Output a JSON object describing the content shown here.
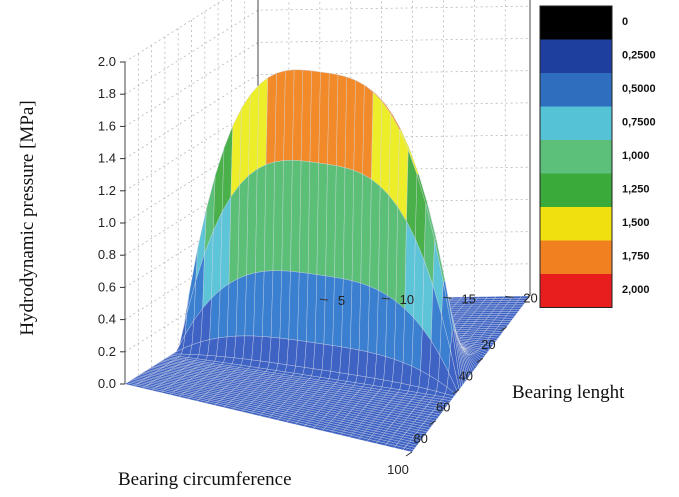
{
  "chart_data": {
    "type": "surface3d",
    "zlabel": "Hydrodynamic pressure [MPa]",
    "xlabel": "Bearing circumference",
    "ylabel": "Bearing lenght",
    "z_ticks": [
      "0.0",
      "0.2",
      "0.4",
      "0.6",
      "0.8",
      "1.0",
      "1.2",
      "1.4",
      "1.6",
      "1.8",
      "2.0"
    ],
    "zlim": [
      0,
      2.0
    ],
    "circumference_ticks": [
      "100",
      "80",
      "60",
      "40",
      "20"
    ],
    "length_ticks": [
      "5",
      "10",
      "15",
      "20"
    ],
    "circumference_range": [
      0,
      100
    ],
    "length_range": [
      0,
      22
    ],
    "peak_pressure": 1.9,
    "peak_circumference": 58,
    "colorbar": {
      "labels": [
        "0",
        "0,2500",
        "0,5000",
        "0,7500",
        "1,000",
        "1,250",
        "1,500",
        "1,750",
        "2,000"
      ],
      "colors": [
        "#000000",
        "#1f3f9e",
        "#2f6dbf",
        "#56c2d6",
        "#5cbf7a",
        "#3aaa3a",
        "#f0e010",
        "#f08020",
        "#e81e1e"
      ]
    },
    "band_colors": [
      "#3f63c4",
      "#3a7fd0",
      "#5ec4d8",
      "#5cbf78",
      "#49b04a",
      "#eded2a",
      "#f28a2a",
      "#e6332a"
    ],
    "grid": true
  }
}
